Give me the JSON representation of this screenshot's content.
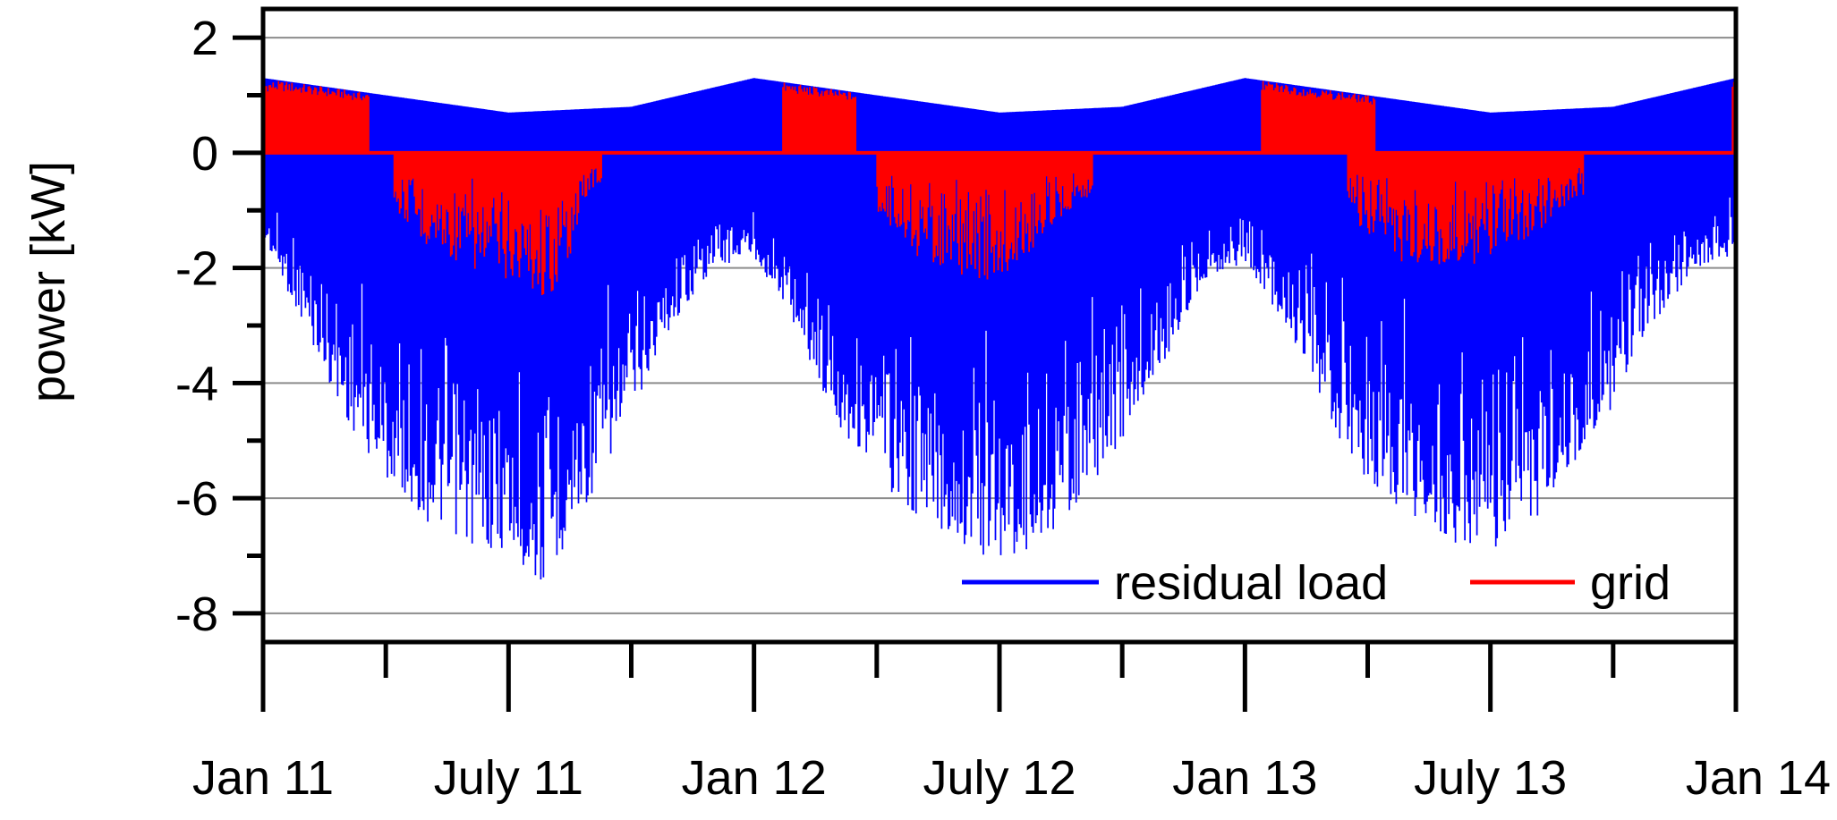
{
  "chart_data": {
    "type": "line",
    "title": "",
    "ylabel": "power [kW]",
    "xlabel": "",
    "ylim": [
      -8.5,
      2.5
    ],
    "yticks_major": [
      2,
      0,
      -2,
      -4,
      -6,
      -8
    ],
    "yticks_minor": [
      1,
      -1,
      -3,
      -5,
      -7
    ],
    "grid": "horizontal",
    "grid_lines": [
      2,
      0,
      -2,
      -4,
      -6,
      -8
    ],
    "x_tick_labels": [
      "Jan 11",
      "July 11",
      "Jan 12",
      "July 12",
      "Jan 13",
      "July 13",
      "Jan 14"
    ],
    "x_range_months": [
      0,
      36
    ],
    "legend_position": "bottom-right",
    "series": [
      {
        "name": "residual load",
        "color": "#0000ff",
        "upper_envelope": {
          "x_month": [
            0,
            3,
            6,
            9,
            12,
            15,
            18,
            21,
            24,
            27,
            30,
            33,
            36
          ],
          "y": [
            1.3,
            1.0,
            0.7,
            0.8,
            1.3,
            1.0,
            0.7,
            0.8,
            1.3,
            1.0,
            0.7,
            0.8,
            1.3
          ]
        },
        "lower_envelope": {
          "x_month": [
            0,
            1,
            2,
            3,
            4,
            5,
            6,
            6.8,
            8,
            9,
            10,
            11,
            12,
            13,
            14,
            15,
            16,
            17,
            18,
            19,
            20,
            21,
            22,
            23,
            24,
            25,
            26,
            27,
            28,
            29,
            30,
            31,
            32,
            33,
            34,
            35,
            36
          ],
          "y": [
            -1.5,
            -3.0,
            -4.6,
            -5.7,
            -6.4,
            -6.8,
            -7.0,
            -7.6,
            -6.0,
            -4.5,
            -3.0,
            -2.0,
            -1.8,
            -3.0,
            -4.7,
            -5.6,
            -6.4,
            -6.8,
            -7.1,
            -6.8,
            -6.0,
            -5.0,
            -3.7,
            -2.2,
            -1.9,
            -3.0,
            -4.7,
            -5.7,
            -6.3,
            -6.8,
            -7.0,
            -6.5,
            -5.5,
            -4.4,
            -3.0,
            -2.0,
            -1.8
          ]
        }
      },
      {
        "name": "grid",
        "color": "#ff0000",
        "winter_import_periods_months": [
          [
            0,
            2.6
          ],
          [
            12.7,
            14.5
          ],
          [
            24.4,
            27.2
          ],
          [
            35.9,
            36
          ]
        ],
        "import_peak_kw": 1.25,
        "summer_export_envelope": {
          "x_month": [
            3.2,
            4,
            5,
            6,
            7,
            7.5,
            8,
            15,
            16,
            17,
            18,
            18.5,
            19,
            20,
            26.5,
            27,
            28,
            29,
            30,
            31,
            32
          ],
          "y": [
            -1.0,
            -1.6,
            -2.0,
            -2.2,
            -2.6,
            -1.8,
            -0.6,
            -1.0,
            -1.8,
            -2.1,
            -2.3,
            -2.0,
            -1.5,
            -0.8,
            -1.0,
            -1.5,
            -2.0,
            -2.0,
            -1.9,
            -1.5,
            -0.8
          ]
        }
      }
    ]
  }
}
